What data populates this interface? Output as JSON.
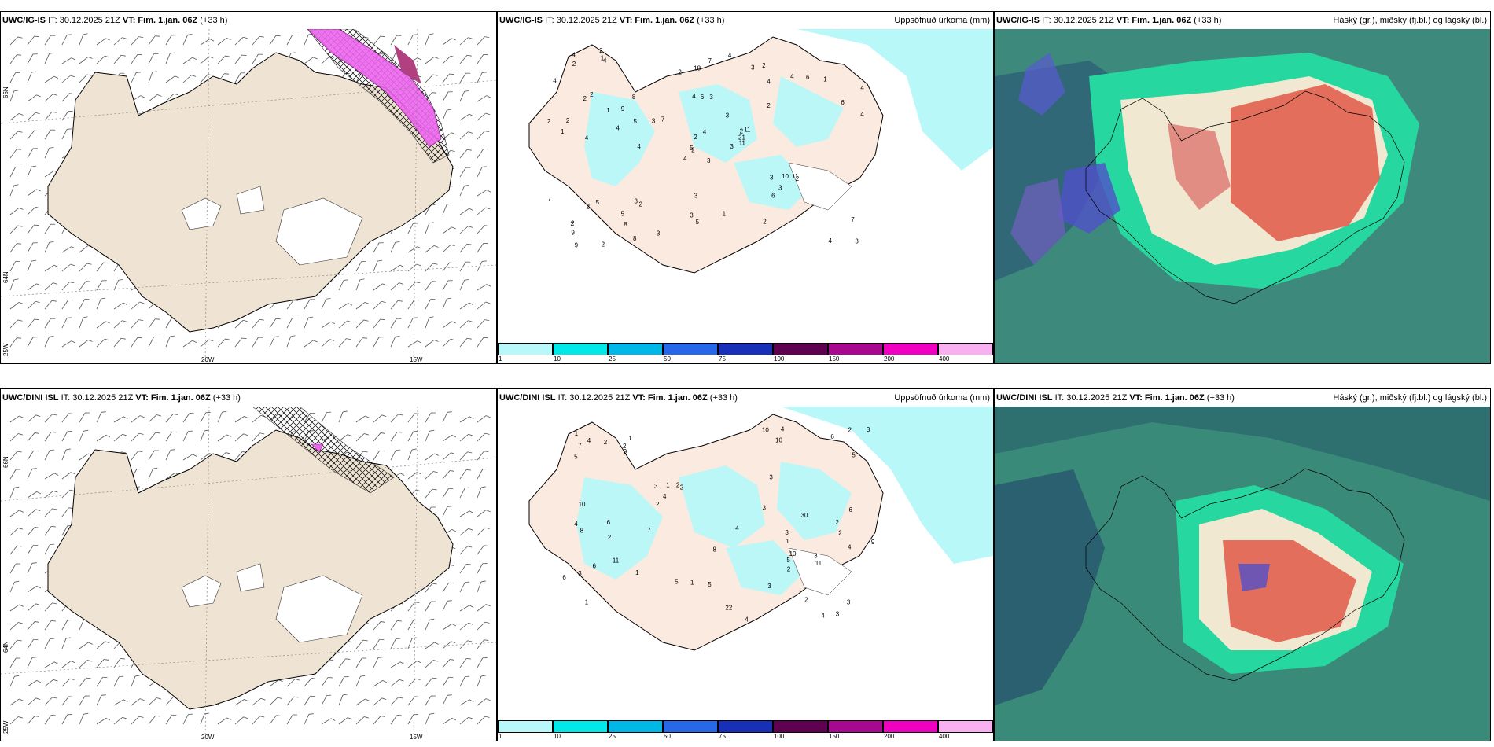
{
  "row1": {
    "panel_a": {
      "model": "UWC/IG-IS",
      "it": "IT: 30.12.2025 21Z",
      "vt": "VT: Fim. 1.jan. 06Z",
      "lead": "(+33 h)"
    },
    "panel_b": {
      "model": "UWC/IG-IS",
      "it": "IT: 30.12.2025 21Z",
      "vt": "VT: Fim. 1.jan. 06Z",
      "lead": "(+33 h)",
      "title": "Uppsöfnuð úrkoma (mm)"
    },
    "panel_c": {
      "model": "UWC/IG-IS",
      "it": "IT: 30.12.2025 21Z",
      "vt": "VT: Fim. 1.jan. 06Z",
      "lead": "(+33 h)",
      "title": "Háský (gr.), miðský (fj.bl.) og lágský (bl.)"
    }
  },
  "row2": {
    "panel_a": {
      "model": "UWC/DINI ISL",
      "it": "IT: 30.12.2025 21Z",
      "vt": "VT: Fim. 1.jan. 06Z",
      "lead": "(+33 h)"
    },
    "panel_b": {
      "model": "UWC/DINI ISL",
      "it": "IT: 30.12.2025 21Z",
      "vt": "VT: Fim. 1.jan. 06Z",
      "lead": "(+33 h)",
      "title": "Uppsöfnuð úrkoma (mm)"
    },
    "panel_c": {
      "model": "UWC/DINI ISL",
      "it": "IT: 30.12.2025 21Z",
      "vt": "VT: Fim. 1.jan. 06Z",
      "lead": "(+33 h)",
      "title": "Háský (gr.), miðský (fj.bl.) og lágský (bl.)"
    }
  },
  "axes": {
    "lon_20": "20W",
    "lon_15": "15W",
    "lat_66": "66N",
    "lat_64": "64N",
    "lon_25": "25W"
  },
  "colorbar": {
    "labels": [
      "1",
      "10",
      "25",
      "50",
      "75",
      "100",
      "150",
      "200",
      "400"
    ],
    "colors": [
      "#b8f8f8",
      "#00e8e8",
      "#00b8e8",
      "#2868e8",
      "#1830b8",
      "#600050",
      "#a80890",
      "#f000c0",
      "#f8b0f0"
    ]
  },
  "precip_row1": [
    "3",
    "2",
    "2",
    "2",
    "2",
    "2",
    "2",
    "3",
    "4",
    "3",
    "4",
    "3",
    "4",
    "4",
    "4",
    "2",
    "2",
    "4",
    "3",
    "5",
    "7",
    "9",
    "8",
    "6",
    "11",
    "2",
    "2",
    "18",
    "1",
    "3",
    "4",
    "5",
    "3",
    "2",
    "8",
    "4",
    "3",
    "4",
    "7",
    "11",
    "4",
    "3",
    "4",
    "6",
    "8",
    "2",
    "21",
    "9",
    "5",
    "11",
    "2",
    "6",
    "4",
    "3",
    "2",
    "5",
    "1",
    "4",
    "1",
    "1",
    "7",
    "4",
    "2",
    "9",
    "6",
    "2",
    "3",
    "2",
    "4",
    "7",
    "3",
    "3",
    "10",
    "5",
    "2",
    "2",
    "1"
  ],
  "precip_row2": [
    "1",
    "2",
    "1",
    "1",
    "2",
    "2",
    "3",
    "10",
    "3",
    "4",
    "5",
    "4",
    "7",
    "3",
    "5",
    "6",
    "8",
    "4",
    "2",
    "11",
    "3",
    "6",
    "2",
    "4",
    "10",
    "2",
    "10",
    "8",
    "9",
    "30",
    "22",
    "3",
    "4",
    "7",
    "2",
    "11",
    "5",
    "6",
    "5",
    "6",
    "5",
    "4",
    "3",
    "1",
    "3",
    "1",
    "6",
    "4",
    "3",
    "10",
    "9",
    "1",
    "2",
    "3",
    "2",
    "4",
    "3",
    "1",
    "2",
    "2"
  ]
}
